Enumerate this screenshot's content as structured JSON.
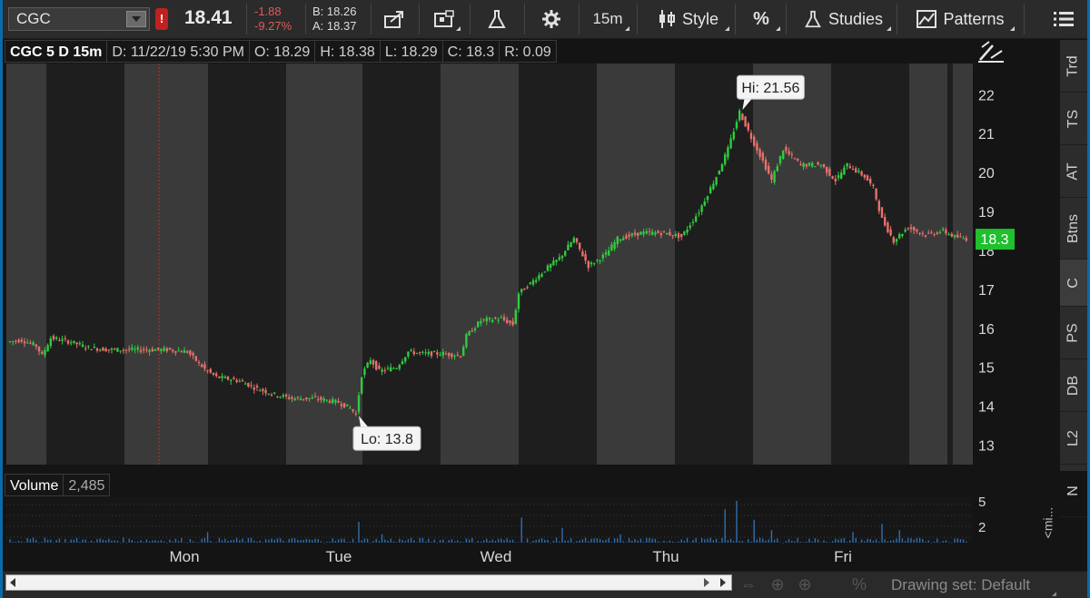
{
  "toolbar": {
    "symbol": "CGC",
    "alert_badge": "!",
    "last_price": "18.41",
    "net_change": "-1.88",
    "pct_change": "-9.27%",
    "bid": "B: 18.26",
    "ask": "A: 18.37",
    "timeframe": "15m",
    "style_label": "Style",
    "studies_label": "Studies",
    "patterns_label": "Patterns"
  },
  "chart_header": {
    "title": "CGC 5 D 15m",
    "date": "D: 11/22/19 5:30 PM",
    "open": "O: 18.29",
    "high": "H: 18.38",
    "low": "L: 18.29",
    "close": "C: 18.3",
    "range": "R: 0.09"
  },
  "chart_data": {
    "type": "candlestick",
    "symbol": "CGC",
    "period": "5 D",
    "interval": "15m",
    "ylim": [
      12.5,
      22.8
    ],
    "y_ticks": [
      13,
      14,
      15,
      16,
      17,
      18,
      19,
      20,
      21,
      22
    ],
    "x_ticks": [
      "Mon",
      "Tue",
      "Wed",
      "Thu",
      "Fri"
    ],
    "last_price_label": "18.3",
    "high_bubble": "Hi: 21.56",
    "low_bubble": "Lo: 13.8",
    "high_value": 21.56,
    "low_value": 13.8,
    "price_path": [
      [
        0,
        15.65
      ],
      [
        5,
        15.7
      ],
      [
        10,
        15.55
      ],
      [
        12,
        15.3
      ],
      [
        15,
        15.75
      ],
      [
        22,
        15.65
      ],
      [
        28,
        15.5
      ],
      [
        35,
        15.45
      ],
      [
        45,
        15.45
      ],
      [
        55,
        15.45
      ],
      [
        62,
        15.4
      ],
      [
        68,
        14.95
      ],
      [
        72,
        14.75
      ],
      [
        80,
        14.65
      ],
      [
        86,
        14.45
      ],
      [
        92,
        14.3
      ],
      [
        98,
        14.2
      ],
      [
        106,
        14.2
      ],
      [
        114,
        14.1
      ],
      [
        118,
        13.95
      ],
      [
        120,
        13.8
      ],
      [
        122,
        14.8
      ],
      [
        125,
        15.2
      ],
      [
        128,
        14.9
      ],
      [
        134,
        15.0
      ],
      [
        138,
        15.4
      ],
      [
        143,
        15.35
      ],
      [
        150,
        15.35
      ],
      [
        156,
        15.3
      ],
      [
        158,
        15.8
      ],
      [
        163,
        16.2
      ],
      [
        170,
        16.25
      ],
      [
        174,
        16.1
      ],
      [
        176,
        16.9
      ],
      [
        180,
        17.15
      ],
      [
        185,
        17.5
      ],
      [
        190,
        17.8
      ],
      [
        195,
        18.3
      ],
      [
        200,
        17.6
      ],
      [
        206,
        17.9
      ],
      [
        210,
        18.3
      ],
      [
        218,
        18.45
      ],
      [
        226,
        18.45
      ],
      [
        232,
        18.35
      ],
      [
        238,
        19.0
      ],
      [
        244,
        19.9
      ],
      [
        248,
        20.6
      ],
      [
        252,
        21.56
      ],
      [
        256,
        20.9
      ],
      [
        260,
        20.3
      ],
      [
        263,
        19.8
      ],
      [
        267,
        20.6
      ],
      [
        273,
        20.2
      ],
      [
        280,
        20.2
      ],
      [
        285,
        19.8
      ],
      [
        289,
        20.2
      ],
      [
        295,
        19.9
      ],
      [
        298,
        19.6
      ],
      [
        301,
        18.8
      ],
      [
        305,
        18.25
      ],
      [
        310,
        18.6
      ],
      [
        316,
        18.4
      ],
      [
        322,
        18.5
      ],
      [
        326,
        18.35
      ],
      [
        330,
        18.3
      ]
    ],
    "volume_ticks": [
      "5",
      "2"
    ],
    "volume_spikes": [
      [
        0,
        0.08
      ],
      [
        12,
        0.12
      ],
      [
        28,
        0.05
      ],
      [
        68,
        0.25
      ],
      [
        90,
        0.1
      ],
      [
        120,
        0.5
      ],
      [
        128,
        0.2
      ],
      [
        176,
        0.6
      ],
      [
        190,
        0.35
      ],
      [
        210,
        0.2
      ],
      [
        246,
        0.8
      ],
      [
        250,
        1.0
      ],
      [
        256,
        0.55
      ],
      [
        262,
        0.3
      ],
      [
        290,
        0.25
      ],
      [
        300,
        0.45
      ],
      [
        306,
        0.3
      ],
      [
        326,
        0.1
      ]
    ]
  },
  "volume_header": {
    "title": "Volume",
    "value": "2,485"
  },
  "side_tabs": [
    "Trd",
    "TS",
    "AT",
    "Btns",
    "C",
    "PS",
    "DB",
    "L2",
    "N"
  ],
  "mini_tab": "<mi...",
  "bottom_bar": {
    "drawing_set": "Drawing set: Default"
  },
  "colors": {
    "up": "#2ecc40",
    "down": "#e8706a",
    "last_price_bg": "#1fbf2e",
    "band_light": "#3a3a3a",
    "band_dark": "#1e1e1e",
    "accent": "#0b6aa8"
  }
}
